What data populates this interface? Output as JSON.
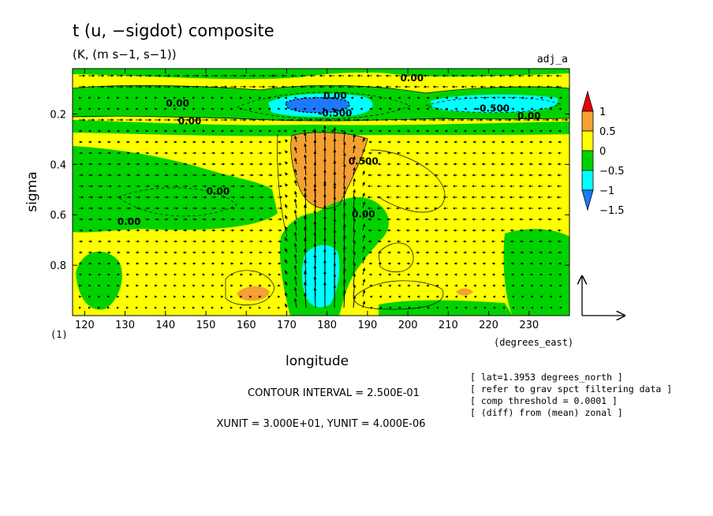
{
  "chart_data": {
    "type": "heatmap",
    "title": "t (u, −sigdot) composite",
    "subtitle": "(K, (m s−1, s−1))",
    "label_right": "adj_a",
    "xlabel": "longitude",
    "xunit": "(degrees_east)",
    "ylabel": "sigma",
    "ylevel_label": "(1)",
    "xlim": [
      117,
      240
    ],
    "ylim": [
      0.02,
      1.0
    ],
    "y_inverted": true,
    "x_ticks": [
      "120",
      "130",
      "140",
      "150",
      "160",
      "170",
      "180",
      "190",
      "200",
      "210",
      "220",
      "230"
    ],
    "x_tick_values": [
      120,
      130,
      140,
      150,
      160,
      170,
      180,
      190,
      200,
      210,
      220,
      230
    ],
    "y_ticks": [
      "0.2",
      "0.4",
      "0.6",
      "0.8"
    ],
    "y_tick_values": [
      0.2,
      0.4,
      0.6,
      0.8
    ],
    "colorbar": {
      "labels": [
        "1",
        "0.5",
        "0",
        "−0.5",
        "−1",
        "−1.5"
      ],
      "colors": [
        "#e8000a",
        "#f5a032",
        "#ffff00",
        "#00d200",
        "#00ffff",
        "#1e78ff"
      ]
    },
    "contour_labels": [
      {
        "text": "0.00",
        "x": 201,
        "y": 0.07
      },
      {
        "text": "0.00",
        "x": 143,
        "y": 0.17
      },
      {
        "text": "0.00",
        "x": 182,
        "y": 0.14
      },
      {
        "text": "0.00",
        "x": 146,
        "y": 0.24
      },
      {
        "text": "-0.500",
        "x": 182,
        "y": 0.21
      },
      {
        "text": "-0.500",
        "x": 221,
        "y": 0.19
      },
      {
        "text": "0.00",
        "x": 230,
        "y": 0.22
      },
      {
        "text": "0.500",
        "x": 189,
        "y": 0.4
      },
      {
        "text": "0.00",
        "x": 153,
        "y": 0.52
      },
      {
        "text": "0.00",
        "x": 189,
        "y": 0.61
      },
      {
        "text": "0.00",
        "x": 131,
        "y": 0.64
      }
    ],
    "info_contour": "CONTOUR INTERVAL = 2.500E-01",
    "info_units": "XUNIT = 3.000E+01, YUNIT = 4.000E-06",
    "notes": [
      "[ lat=1.3953 degrees_north ]",
      "[ refer to grav spct filtering data ]",
      "[ comp threshold = 0.0001 ]",
      "[ (diff) from (mean) zonal ]"
    ]
  }
}
